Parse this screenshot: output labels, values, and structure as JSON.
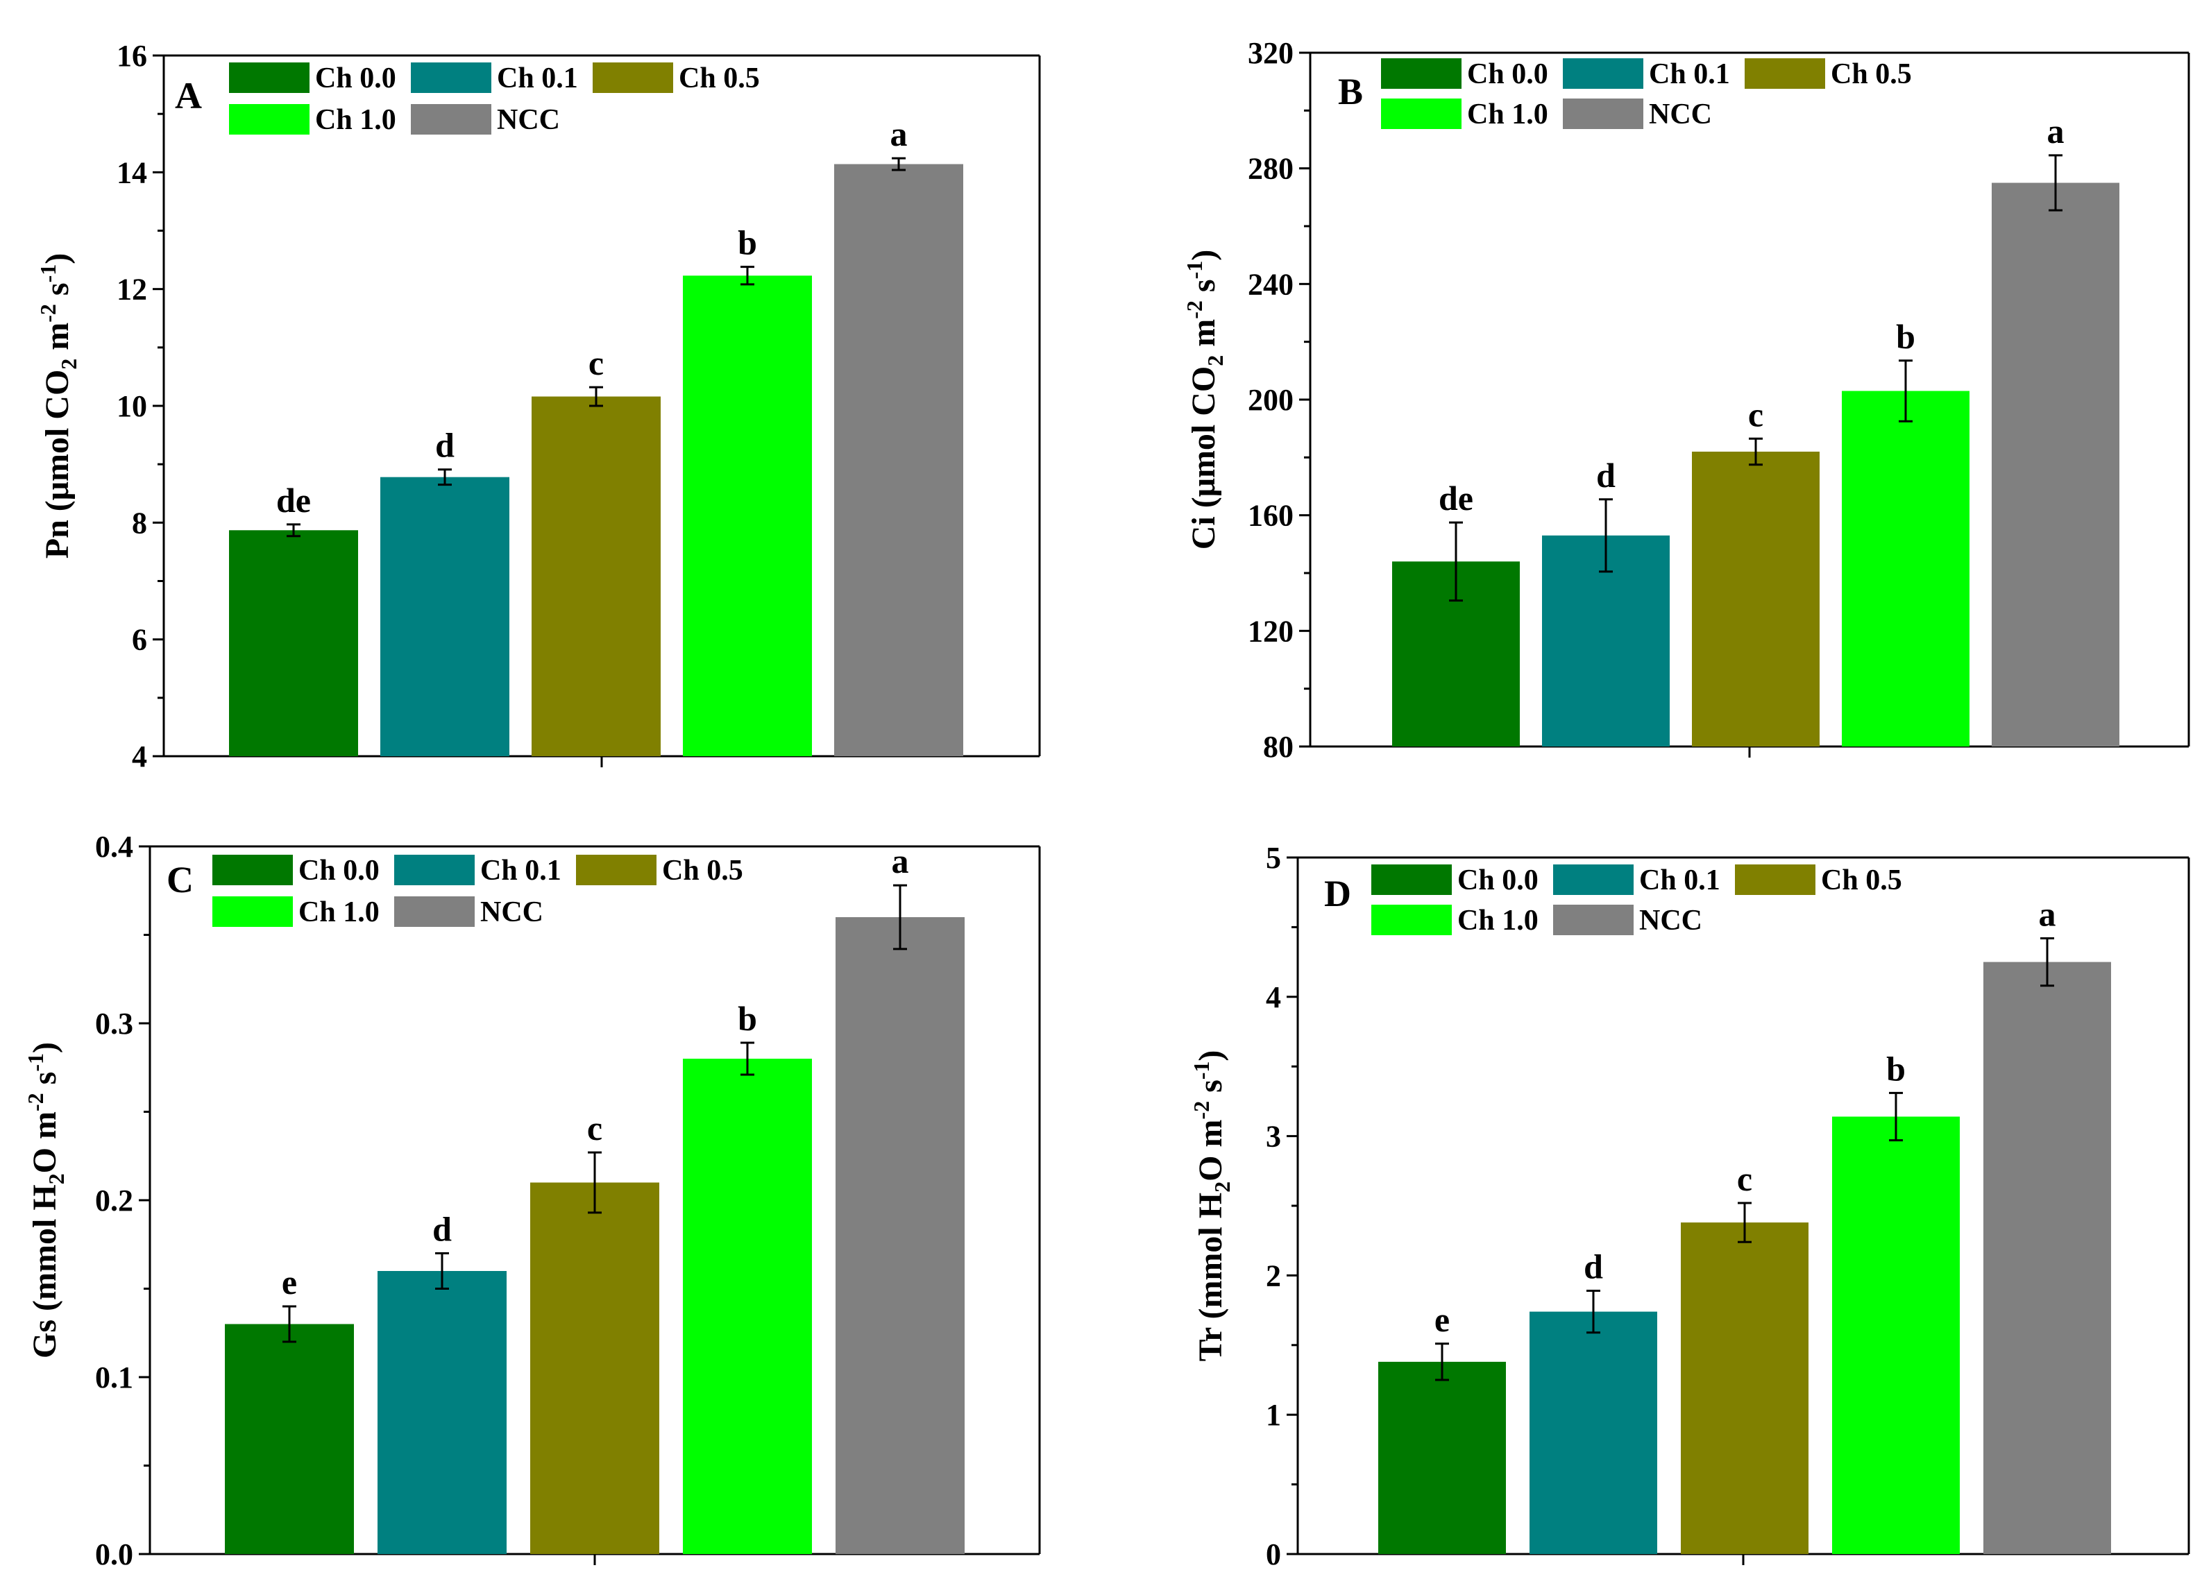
{
  "chart_data": [
    {
      "panel": "A",
      "type": "bar",
      "categories": [
        "Ch 0.0",
        "Ch 0.1",
        "Ch 0.5",
        "Ch 1.0",
        "NCC"
      ],
      "values": [
        7.87,
        8.78,
        10.16,
        12.23,
        14.14
      ],
      "errors": [
        0.1,
        0.13,
        0.16,
        0.15,
        0.1
      ],
      "letters": [
        "de",
        "d",
        "c",
        "b",
        "a"
      ],
      "ylabel_main": "Pn (μmol CO",
      "ylabel_sub2": "2",
      "ylabel_mid": " m",
      "ylabel_sup1": "-2",
      "ylabel_mid2": " s",
      "ylabel_sup2": "-1",
      "ylabel_end": ")",
      "ylim": [
        4,
        16
      ],
      "yticks": [
        "4",
        "6",
        "8",
        "10",
        "12",
        "14",
        "16"
      ]
    },
    {
      "panel": "B",
      "type": "bar",
      "categories": [
        "Ch 0.0",
        "Ch 0.1",
        "Ch 0.5",
        "Ch 1.0",
        "NCC"
      ],
      "values": [
        144,
        153,
        182,
        203,
        275
      ],
      "errors": [
        13.5,
        12.5,
        4.5,
        10.5,
        9.5
      ],
      "letters": [
        "de",
        "d",
        "c",
        "b",
        "a"
      ],
      "ylabel_main": "Ci (μmol CO",
      "ylabel_sub2": "2",
      "ylabel_mid": " m",
      "ylabel_sup1": "-2",
      "ylabel_mid2": " s",
      "ylabel_sup2": "-1",
      "ylabel_end": ")",
      "ylim": [
        80,
        320
      ],
      "yticks": [
        "80",
        "120",
        "160",
        "200",
        "240",
        "280",
        "320"
      ]
    },
    {
      "panel": "C",
      "type": "bar",
      "categories": [
        "Ch 0.0",
        "Ch 0.1",
        "Ch 0.5",
        "Ch 1.0",
        "NCC"
      ],
      "values": [
        0.13,
        0.16,
        0.21,
        0.28,
        0.36
      ],
      "errors": [
        0.01,
        0.01,
        0.017,
        0.009,
        0.018
      ],
      "letters": [
        "e",
        "d",
        "c",
        "b",
        "a"
      ],
      "ylabel_main": "Gs (mmol H",
      "ylabel_sub2": "2",
      "ylabel_mid": "O m",
      "ylabel_sup1": "-2",
      "ylabel_mid2": " s",
      "ylabel_sup2": "-1",
      "ylabel_end": ")",
      "ylim": [
        0,
        0.4
      ],
      "yticks": [
        "0.0",
        "0.1",
        "0.2",
        "0.3",
        "0.4"
      ]
    },
    {
      "panel": "D",
      "type": "bar",
      "categories": [
        "Ch 0.0",
        "Ch 0.1",
        "Ch 0.5",
        "Ch 1.0",
        "NCC"
      ],
      "values": [
        1.38,
        1.74,
        2.38,
        3.14,
        4.25
      ],
      "errors": [
        0.13,
        0.15,
        0.14,
        0.17,
        0.17
      ],
      "letters": [
        "e",
        "d",
        "c",
        "b",
        "a"
      ],
      "ylabel_main": "Tr (mmol H",
      "ylabel_sub2": "2",
      "ylabel_mid": "O m",
      "ylabel_sup1": "-2",
      "ylabel_mid2": " s",
      "ylabel_sup2": "-1",
      "ylabel_end": ")",
      "ylim": [
        0,
        5
      ],
      "yticks": [
        "0",
        "1",
        "2",
        "3",
        "4",
        "5"
      ]
    }
  ],
  "colors": [
    "#007800",
    "#008080",
    "#808000",
    "#00ff00",
    "#808080"
  ]
}
